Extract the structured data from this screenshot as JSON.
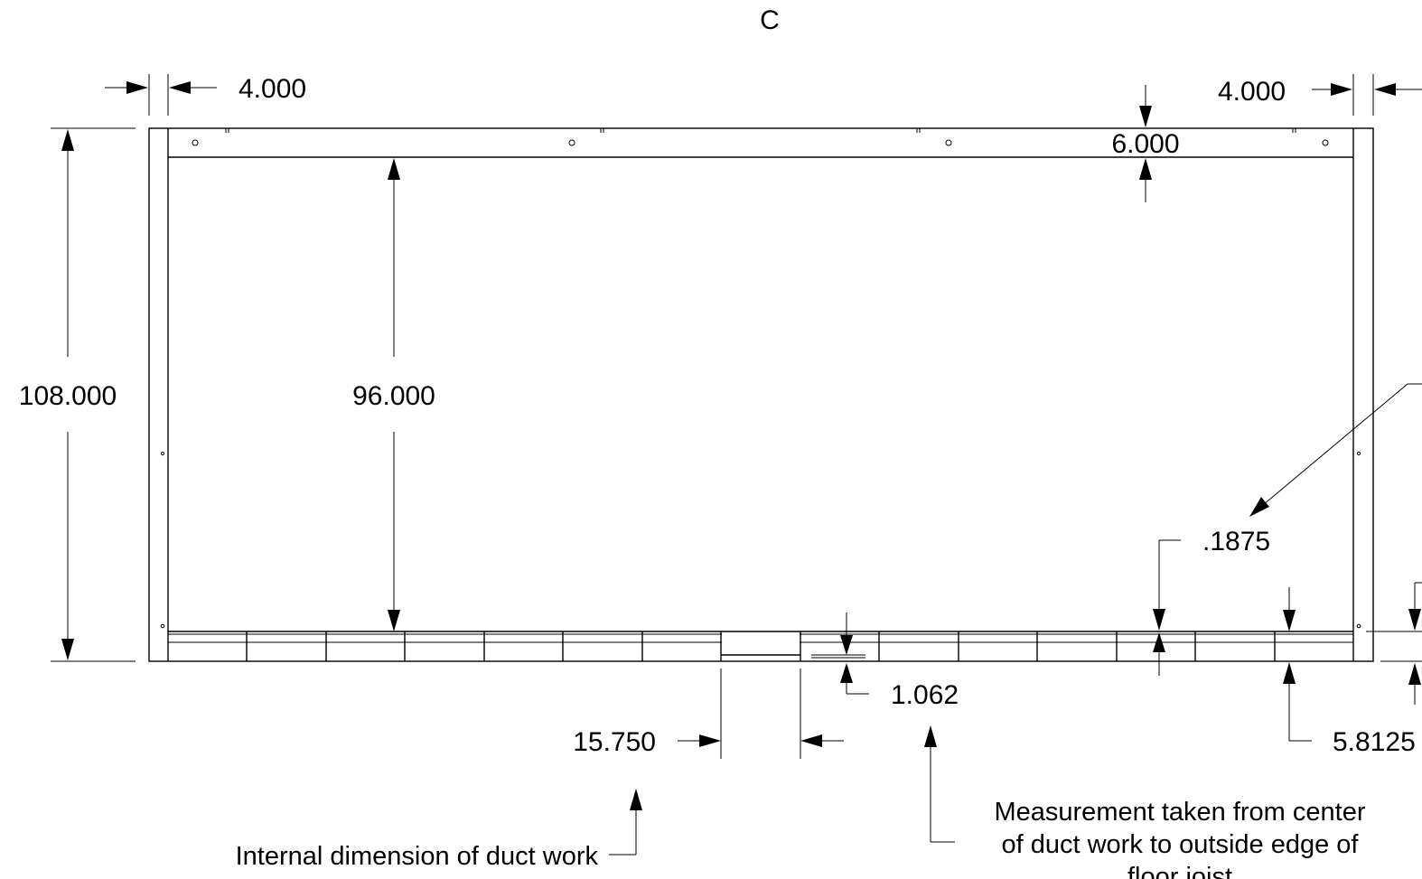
{
  "title": "C",
  "dimensions": {
    "left_offset": "4.000",
    "right_offset": "4.000",
    "top_rail": "6.000",
    "overall_height": "108.000",
    "inner_height": "96.000",
    "small_offset": ".1875",
    "bottom_gap": "1.062",
    "duct_width": "15.750",
    "right_bottom": "5.8125"
  },
  "notes": {
    "duct_internal": "Internal dimension of duct work",
    "center_line_1": "Measurement taken from center",
    "center_line_2": "of duct work to outside edge of",
    "center_line_3": "floor joist"
  },
  "colors": {
    "line": "#000000",
    "background": "#ffffff"
  }
}
